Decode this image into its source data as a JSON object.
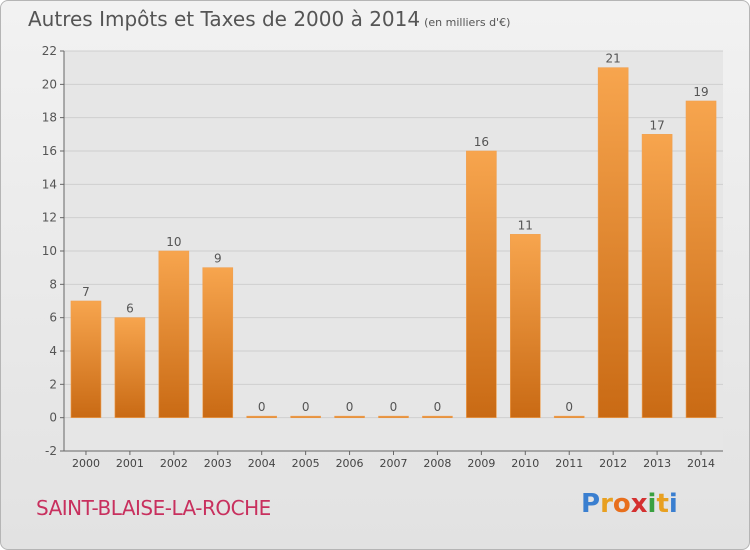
{
  "chart_data": {
    "type": "bar",
    "title": "Autres Impôts et Taxes de 2000 à 2014",
    "subtitle": "(en milliers d'€)",
    "categories": [
      "2000",
      "2001",
      "2002",
      "2003",
      "2004",
      "2005",
      "2006",
      "2007",
      "2008",
      "2009",
      "2010",
      "2011",
      "2012",
      "2013",
      "2014"
    ],
    "values": [
      7,
      6,
      10,
      9,
      0,
      0,
      0,
      0,
      0,
      16,
      11,
      0,
      21,
      17,
      19
    ],
    "ylim": [
      -2,
      22
    ],
    "yticks": [
      -2,
      0,
      2,
      4,
      6,
      8,
      10,
      12,
      14,
      16,
      18,
      20,
      22
    ],
    "grid": true,
    "bar_color": "#f0902e"
  },
  "footer": {
    "place": "SAINT-BLAISE-LA-ROCHE",
    "logo_letters": [
      "P",
      "r",
      "o",
      "x",
      "i",
      "t",
      "i"
    ]
  },
  "colors": {
    "logo": [
      "#3a7fd0",
      "#e8a020",
      "#e86f1c",
      "#d43030",
      "#3aa040",
      "#e8a020",
      "#3a7fd0"
    ]
  }
}
